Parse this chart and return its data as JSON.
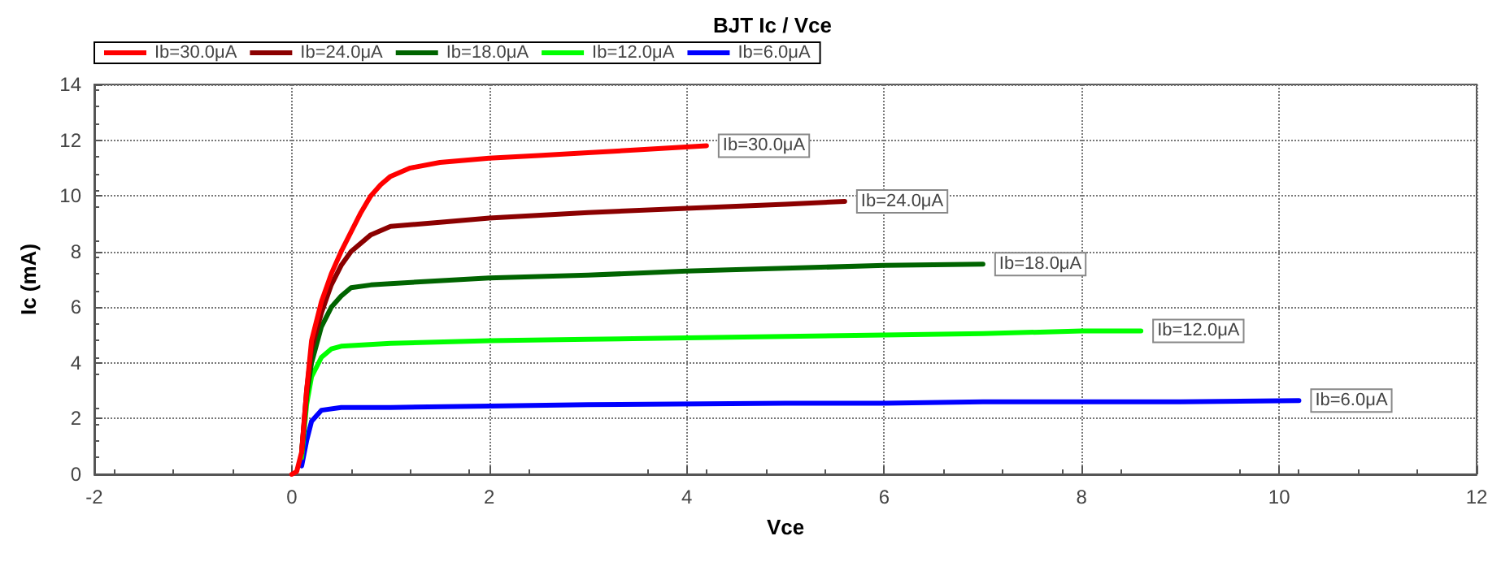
{
  "chart_data": {
    "type": "line",
    "title": "BJT Ic / Vce",
    "xlabel": "Vce",
    "ylabel": "Ic (mA)",
    "xlim": [
      -2,
      12
    ],
    "xticks": [
      -2,
      0,
      2,
      4,
      6,
      8,
      10,
      12
    ],
    "ylim": [
      0,
      14
    ],
    "yticks": [
      0,
      2,
      4,
      6,
      8,
      10,
      12,
      14
    ],
    "grid": true,
    "legend": "top left",
    "marker": "none",
    "line_style": "solid",
    "series": [
      {
        "name": "Ib=30.0μA",
        "color": "#ff0000",
        "x": [
          0,
          0.05,
          0.1,
          0.15,
          0.2,
          0.3,
          0.4,
          0.5,
          0.6,
          0.7,
          0.8,
          0.9,
          1.0,
          1.2,
          1.5,
          2,
          2.5,
          3,
          3.5,
          4.2
        ],
        "values": [
          0,
          0.1,
          0.8,
          3,
          4.8,
          6.2,
          7.2,
          8,
          8.7,
          9.4,
          10,
          10.4,
          10.7,
          11.0,
          11.2,
          11.35,
          11.45,
          11.55,
          11.65,
          11.8
        ]
      },
      {
        "name": "Ib=24.0μA",
        "color": "#8b0000",
        "x": [
          0.1,
          0.15,
          0.2,
          0.3,
          0.4,
          0.5,
          0.6,
          0.8,
          1.0,
          1.5,
          2,
          3,
          4,
          5,
          5.6
        ],
        "values": [
          0.8,
          3,
          4.5,
          5.8,
          6.8,
          7.5,
          8.0,
          8.6,
          8.9,
          9.05,
          9.2,
          9.4,
          9.55,
          9.7,
          9.8
        ]
      },
      {
        "name": "Ib=18.0μA",
        "color": "#006400",
        "x": [
          0.1,
          0.15,
          0.2,
          0.3,
          0.4,
          0.5,
          0.6,
          0.8,
          1,
          2,
          3,
          4,
          5,
          6,
          7
        ],
        "values": [
          0.8,
          2.8,
          4.0,
          5.3,
          6.0,
          6.4,
          6.7,
          6.8,
          6.85,
          7.05,
          7.15,
          7.3,
          7.4,
          7.5,
          7.55
        ]
      },
      {
        "name": "Ib=12.0μA",
        "color": "#00ff00",
        "x": [
          0.1,
          0.15,
          0.2,
          0.3,
          0.4,
          0.5,
          1,
          2,
          3,
          4,
          5,
          6,
          7,
          8,
          8.6
        ],
        "values": [
          0.6,
          2.5,
          3.5,
          4.2,
          4.5,
          4.6,
          4.7,
          4.8,
          4.85,
          4.9,
          4.95,
          5.0,
          5.05,
          5.15,
          5.15
        ]
      },
      {
        "name": "Ib=6.0μA",
        "color": "#0000ff",
        "x": [
          0.1,
          0.15,
          0.2,
          0.3,
          0.5,
          1,
          2,
          3,
          5,
          6,
          7,
          9,
          10.2
        ],
        "values": [
          0.3,
          1.2,
          1.9,
          2.3,
          2.4,
          2.4,
          2.45,
          2.5,
          2.55,
          2.55,
          2.6,
          2.6,
          2.65
        ]
      }
    ]
  }
}
